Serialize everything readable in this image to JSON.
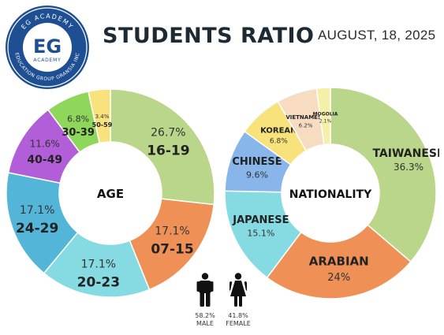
{
  "header": {
    "title": "STUDENTS RATIO",
    "date": "AUGUST, 18, 2025"
  },
  "logo": {
    "monogram": "EG",
    "ring_top": "EG ACADEMY",
    "ring_bottom": "EDUCATION GROUP GRANSIA INC",
    "inner": "ACADEMY"
  },
  "gender": {
    "male": {
      "percent": "58.2%",
      "label": "MALE",
      "icon": "male-person-icon"
    },
    "female": {
      "percent": "41.8%",
      "label": "FEMALE",
      "icon": "female-person-icon"
    }
  },
  "chart_data": [
    {
      "type": "pie",
      "variant": "donut",
      "center_label": "AGE",
      "categories": [
        "16-19",
        "07-15",
        "20-23",
        "24-29",
        "40-49",
        "30-39",
        "50-59"
      ],
      "values": [
        26.7,
        17.1,
        17.1,
        17.1,
        11.6,
        6.8,
        3.4
      ],
      "value_labels": [
        "26.7%",
        "17.1%",
        "17.1%",
        "17.1%",
        "11.6%",
        "6.8%",
        "3.4%"
      ],
      "colors": [
        "#b9d68a",
        "#ef9157",
        "#86dbe3",
        "#53b6d9",
        "#b35ed9",
        "#8fd75a",
        "#f7e27c"
      ],
      "start": "top, clockwise"
    },
    {
      "type": "pie",
      "variant": "donut",
      "center_label": "NATIONALITY",
      "categories": [
        "TAIWANESE",
        "ARABIAN",
        "JAPANESE",
        "CHINESE",
        "KOREAN",
        "VIETNAMESE",
        "MOGOLIA"
      ],
      "values": [
        36.3,
        24,
        15.1,
        9.6,
        6.8,
        6.2,
        2.1
      ],
      "value_labels": [
        "36.3%",
        "24%",
        "15.1%",
        "9.6%",
        "6.8%",
        "6.2%",
        "2.1%"
      ],
      "colors": [
        "#b9d68a",
        "#ef9157",
        "#86dbe3",
        "#88b6ea",
        "#f7e27c",
        "#f8dcc2",
        "#f5f0a8"
      ],
      "start": "top, clockwise"
    }
  ]
}
